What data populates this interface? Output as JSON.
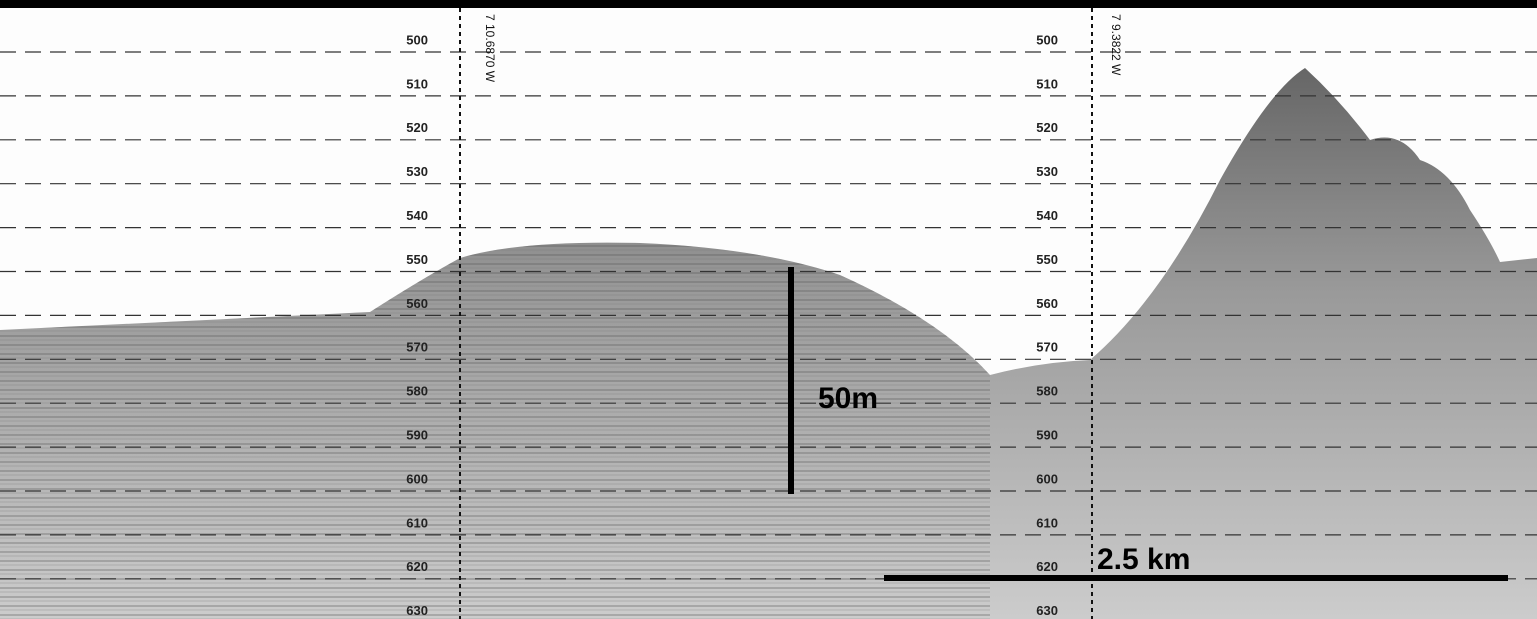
{
  "depth_labels": [
    "500",
    "510",
    "520",
    "530",
    "540",
    "550",
    "560",
    "570",
    "580",
    "590",
    "600",
    "610",
    "620",
    "630"
  ],
  "position_labels": [
    "7 10.6870 W",
    "7 9.3822 W"
  ],
  "scale_bars": {
    "vertical": "50m",
    "horizontal": "2.5 km"
  }
}
